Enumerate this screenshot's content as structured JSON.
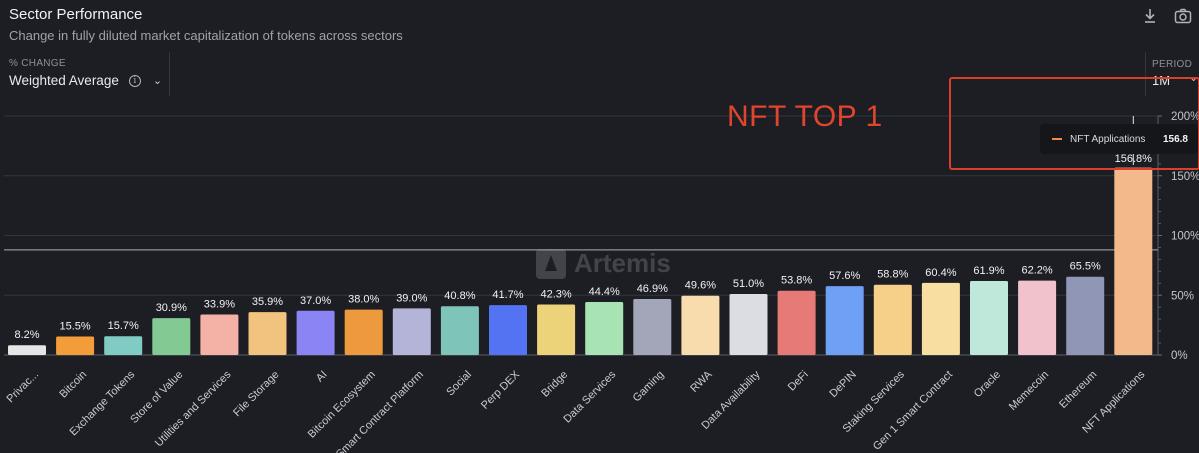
{
  "header": {
    "title": "Sector Performance",
    "subtitle": "Change in fully diluted market capitalization of tokens across sectors"
  },
  "toolbar": {
    "download_icon": "download-icon",
    "screenshot_icon": "camera-icon"
  },
  "controls": {
    "metric_label": "% CHANGE",
    "metric_value": "Weighted Average",
    "period_label": "PERIOD",
    "period_value": "1M"
  },
  "annotation": {
    "text": "NFT TOP 1",
    "color": "#e0452e"
  },
  "tooltip": {
    "series": "NFT Applications",
    "value": "156.8"
  },
  "watermark": "Artemis",
  "chart_data": {
    "type": "bar",
    "ylim": [
      0,
      200
    ],
    "yticks": [
      0,
      50,
      100,
      150,
      200
    ],
    "ytick_labels": [
      "0%",
      "50%",
      "100%",
      "150%",
      "200%"
    ],
    "reference_lines": [
      88
    ],
    "grid": true,
    "categories": [
      "Privacy",
      "Bitcoin",
      "Exchange Tokens",
      "Store of Value",
      "Utilities and Services",
      "File Storage",
      "AI",
      "Bitcoin Ecosystem",
      "Smart Contract Platform",
      "Social",
      "Perp DEX",
      "Bridge",
      "Data Services",
      "Gaming",
      "RWA",
      "Data Availability",
      "DeFi",
      "DePIN",
      "Staking Services",
      "Gen 1 Smart Contract",
      "Oracle",
      "Memecoin",
      "Ethereum",
      "NFT Applications"
    ],
    "category_display": [
      "Privac...",
      "Bitcoin",
      "Exchange Tokens",
      "Store of Value",
      "Utilities and Services",
      "File Storage",
      "AI",
      "Bitcoin Ecosystem",
      "Smart Contract Platform",
      "Social",
      "Perp DEX",
      "Bridge",
      "Data Services",
      "Gaming",
      "RWA",
      "Data Availability",
      "DeFi",
      "DePIN",
      "Staking Services",
      "Gen 1 Smart Contract",
      "Oracle",
      "Memecoin",
      "Ethereum",
      "NFT Applications"
    ],
    "values": [
      8.2,
      15.5,
      15.7,
      30.9,
      33.9,
      35.9,
      37.0,
      38.0,
      39.0,
      40.8,
      41.7,
      42.3,
      44.4,
      46.9,
      49.6,
      51.0,
      53.8,
      57.6,
      58.8,
      60.4,
      61.9,
      62.2,
      65.5,
      156.8
    ],
    "value_labels": [
      "8.2%",
      "15.5%",
      "15.7%",
      "30.9%",
      "33.9%",
      "35.9%",
      "37.0%",
      "38.0%",
      "39.0%",
      "40.8%",
      "41.7%",
      "42.3%",
      "44.4%",
      "46.9%",
      "49.6%",
      "51.0%",
      "53.8%",
      "57.6%",
      "58.8%",
      "60.4%",
      "61.9%",
      "62.2%",
      "65.5%",
      "156.8%"
    ],
    "colors": [
      "#e6e6e6",
      "#f39c3a",
      "#80cbc4",
      "#82c994",
      "#f4b2a6",
      "#f2c27f",
      "#8a84f4",
      "#ec9a3d",
      "#b3b4d8",
      "#7fc4b8",
      "#5473f2",
      "#ecd37a",
      "#a7e3b3",
      "#a3a5b8",
      "#f8dcae",
      "#dcdde2",
      "#e57a76",
      "#6ea0f5",
      "#f6d089",
      "#f8dea0",
      "#bfe8da",
      "#f2c2cc",
      "#9096b5",
      "#f3b98b"
    ]
  }
}
